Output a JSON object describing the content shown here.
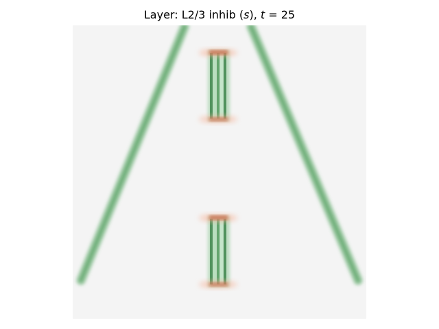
{
  "figure": {
    "title_prefix": "Layer: L2/3 inhib (",
    "title_var": "s",
    "title_mid": "), ",
    "title_time_var": "t",
    "title_time_eq": " = 25"
  },
  "colors": {
    "background": "#f4f4f4",
    "stroke_green": "#2e8b3e",
    "dark_green": "#1f5f2e",
    "edge_red": "#d9603f",
    "edge_glow": "#f7b399"
  }
}
